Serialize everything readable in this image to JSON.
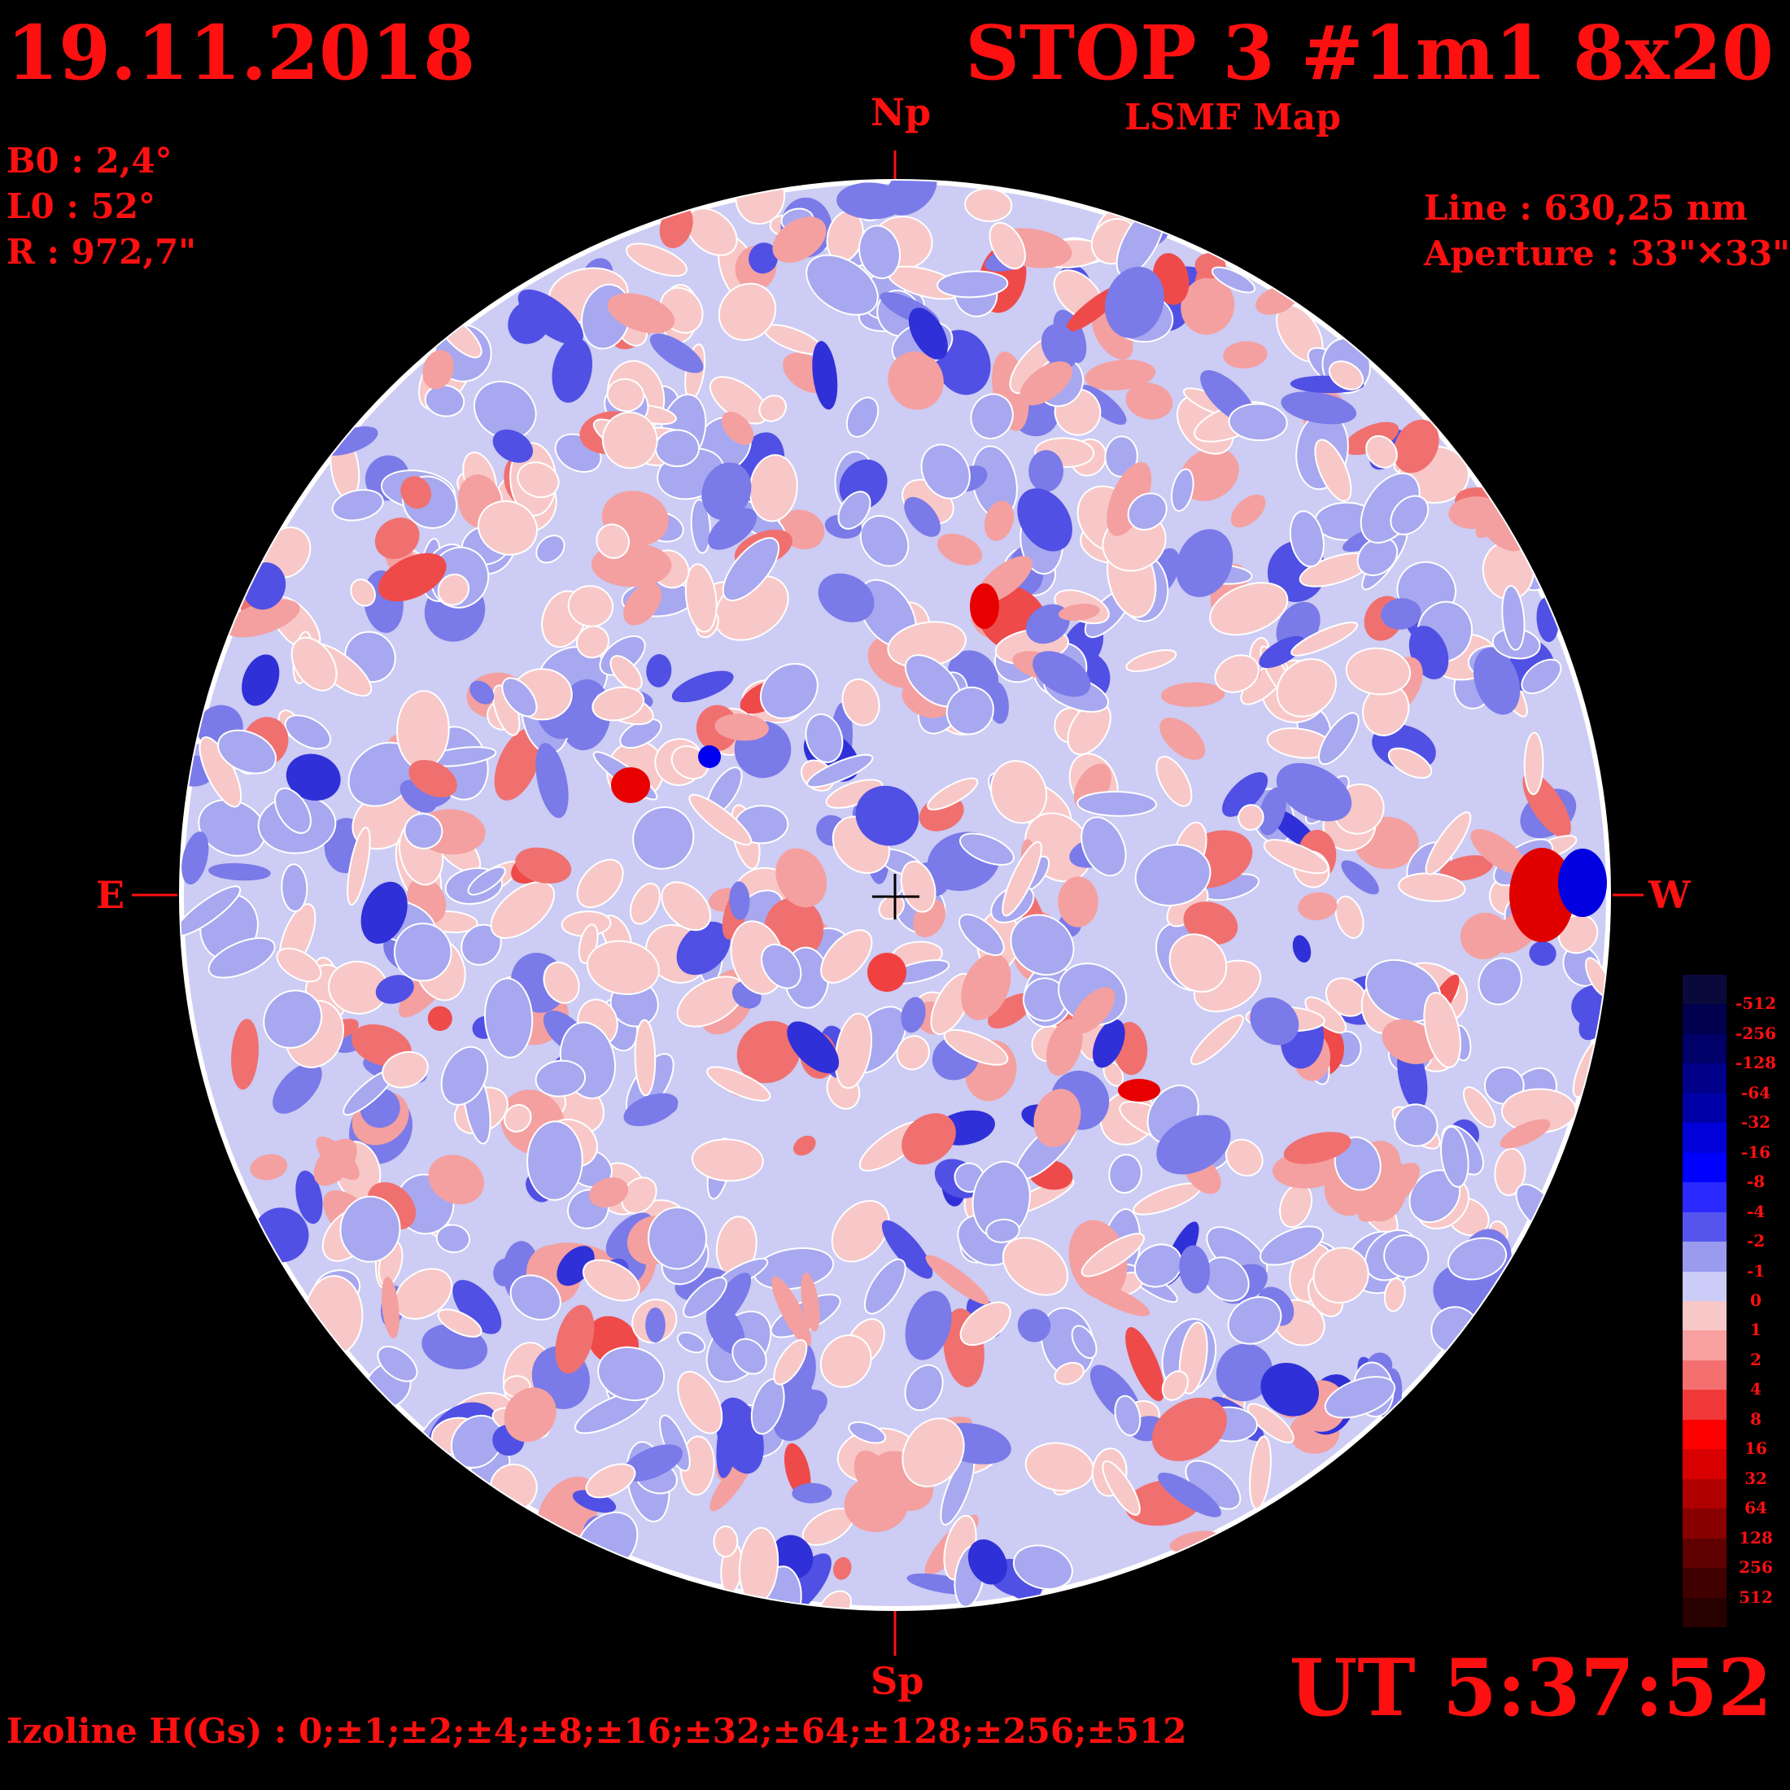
{
  "header": {
    "date": "19.11.2018",
    "title": "STOP 3 #1m1 8x20",
    "subtitle": "LSMF  Map"
  },
  "params": {
    "b0": "B0 : 2,4°",
    "l0": "L0 : 52°",
    "r": "R  : 972,7\""
  },
  "instrument": {
    "line": "Line :  630,25 nm",
    "aperture": "Aperture : 33\"✕33\""
  },
  "directions": {
    "north": "Np",
    "south": "Sp",
    "east": "E",
    "west": "W"
  },
  "time": "UT 5:37:52",
  "izoline": "Izoline H(Gs) : 0;±1;±2;±4;±8;±16;±32;±64;±128;±256;±512",
  "colorbar": {
    "labels": [
      "-512",
      "-256",
      "-128",
      "-64",
      "-32",
      "-16",
      "-8",
      "-4",
      "-2",
      "-1",
      "0",
      "1",
      "2",
      "4",
      "8",
      "16",
      "32",
      "64",
      "128",
      "256",
      "512"
    ],
    "colors": [
      "#0a0a3a",
      "#00004e",
      "#000068",
      "#000088",
      "#0000a8",
      "#0000d8",
      "#0000ff",
      "#2a2aff",
      "#5555ee",
      "#9a9aee",
      "#ccccf8",
      "#f8c8c8",
      "#f8a0a0",
      "#f47070",
      "#f03838",
      "#ff0000",
      "#d80000",
      "#b00000",
      "#880000",
      "#600000",
      "#400000",
      "#280000"
    ]
  },
  "colors": {
    "text": "#ff1010",
    "background": "#000000",
    "disk_base": "#ccccf4",
    "positive_field": "#f06868",
    "negative_field": "#4848e8"
  }
}
